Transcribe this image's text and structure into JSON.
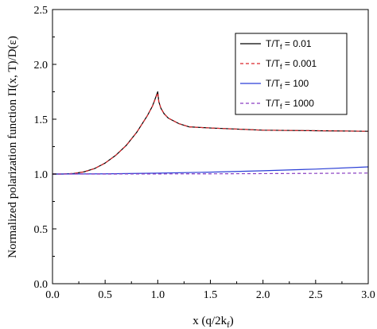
{
  "chart_data": {
    "type": "line",
    "title": "",
    "xlabel": "x (q/2k",
    "xlabel_sub": "f",
    "xlabel_end": ")",
    "ylabel": "Normalized polarization function Π(x, T)/D(ε)",
    "xlim": [
      0.0,
      3.0
    ],
    "ylim": [
      0.0,
      2.5
    ],
    "xticks": [
      "0.0",
      "0.5",
      "1.0",
      "1.5",
      "2.0",
      "2.5",
      "3.0"
    ],
    "yticks": [
      "0.0",
      "0.5",
      "1.0",
      "1.5",
      "2.0",
      "2.5"
    ],
    "legend_position": "top-right",
    "series": [
      {
        "name": "T/T",
        "name_sub": "f",
        "name_end": " = 0.01",
        "color": "#000000",
        "dash": "solid",
        "x": [
          0.0,
          0.1,
          0.2,
          0.3,
          0.4,
          0.5,
          0.6,
          0.7,
          0.8,
          0.9,
          0.95,
          1.0,
          1.01,
          1.03,
          1.06,
          1.1,
          1.2,
          1.3,
          1.5,
          1.75,
          2.0,
          2.5,
          3.0
        ],
        "y": [
          1.0,
          1.0,
          1.005,
          1.02,
          1.05,
          1.1,
          1.17,
          1.26,
          1.38,
          1.53,
          1.62,
          1.75,
          1.66,
          1.6,
          1.55,
          1.51,
          1.46,
          1.43,
          1.42,
          1.41,
          1.4,
          1.395,
          1.39
        ]
      },
      {
        "name": "T/T",
        "name_sub": "f",
        "name_end": " = 0.001",
        "color": "#d9262b",
        "dash": "dashed",
        "x": [
          0.0,
          0.1,
          0.2,
          0.3,
          0.4,
          0.5,
          0.6,
          0.7,
          0.8,
          0.9,
          0.95,
          1.0,
          1.01,
          1.03,
          1.06,
          1.1,
          1.2,
          1.3,
          1.5,
          1.75,
          2.0,
          2.5,
          3.0
        ],
        "y": [
          1.0,
          1.0,
          1.005,
          1.02,
          1.05,
          1.1,
          1.17,
          1.26,
          1.38,
          1.53,
          1.62,
          1.74,
          1.66,
          1.6,
          1.55,
          1.51,
          1.46,
          1.43,
          1.42,
          1.41,
          1.4,
          1.395,
          1.39
        ]
      },
      {
        "name": "T/T",
        "name_sub": "f",
        "name_end": " = 100",
        "color": "#2b3fd6",
        "dash": "solid",
        "x": [
          0.0,
          0.5,
          1.0,
          1.5,
          2.0,
          2.5,
          3.0
        ],
        "y": [
          1.0,
          1.002,
          1.008,
          1.017,
          1.03,
          1.045,
          1.065
        ]
      },
      {
        "name": "T/T",
        "name_sub": "f",
        "name_end": " = 1000",
        "color": "#8a3fc2",
        "dash": "dashed",
        "x": [
          0.0,
          0.5,
          1.0,
          1.5,
          2.0,
          2.5,
          3.0
        ],
        "y": [
          1.0,
          1.0,
          1.001,
          1.002,
          1.004,
          1.006,
          1.009
        ]
      }
    ]
  }
}
